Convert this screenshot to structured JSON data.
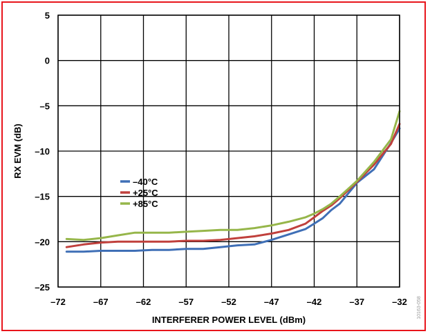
{
  "chart_data": {
    "type": "line",
    "xlabel": "INTERFERER POWER LEVEL (dBm)",
    "ylabel": "RX EVM (dB)",
    "xlim": [
      -72,
      -32
    ],
    "ylim": [
      -25,
      5
    ],
    "xticks": [
      -72,
      -67,
      -62,
      -57,
      -52,
      -47,
      -42,
      -37,
      -32
    ],
    "yticks": [
      5,
      0,
      -5,
      -10,
      -15,
      -20,
      -25
    ],
    "xtick_labels": [
      "–72",
      "–67",
      "–62",
      "–57",
      "–52",
      "–47",
      "–42",
      "–37",
      "–32"
    ],
    "ytick_labels": [
      "5",
      "0",
      "–5",
      "–10",
      "–15",
      "–20",
      "–25"
    ],
    "grid": true,
    "legend_position": "center-left",
    "series": [
      {
        "name": "–40°C",
        "color": "#3f6fb6",
        "x": [
          -71,
          -69,
          -67,
          -65,
          -63,
          -61,
          -59,
          -57,
          -55,
          -53,
          -51,
          -49,
          -47,
          -45,
          -43,
          -42,
          -41,
          -40,
          -39,
          -37,
          -35,
          -33,
          -32
        ],
        "y": [
          -21.1,
          -21.1,
          -21.0,
          -21.0,
          -21.0,
          -20.9,
          -20.9,
          -20.8,
          -20.8,
          -20.6,
          -20.4,
          -20.3,
          -19.8,
          -19.2,
          -18.6,
          -18.0,
          -17.4,
          -16.5,
          -15.8,
          -13.5,
          -12.0,
          -9.1,
          -7.5
        ]
      },
      {
        "name": "+25°C",
        "color": "#c0403c",
        "x": [
          -71,
          -69,
          -67,
          -65,
          -63,
          -61,
          -59,
          -57,
          -55,
          -53,
          -51,
          -49,
          -47,
          -45,
          -43,
          -42,
          -41,
          -40,
          -39,
          -37,
          -35,
          -33,
          -32
        ],
        "y": [
          -20.6,
          -20.3,
          -20.1,
          -20.0,
          -20.0,
          -20.0,
          -20.0,
          -19.9,
          -19.9,
          -19.8,
          -19.6,
          -19.4,
          -19.1,
          -18.7,
          -18.0,
          -17.3,
          -16.6,
          -16.0,
          -15.2,
          -13.4,
          -11.5,
          -9.2,
          -7.0
        ]
      },
      {
        "name": "+85°C",
        "color": "#96b64a",
        "x": [
          -71,
          -69,
          -67,
          -65,
          -63,
          -61,
          -59,
          -57,
          -55,
          -53,
          -51,
          -49,
          -47,
          -45,
          -43,
          -42,
          -41,
          -40,
          -39,
          -37,
          -35,
          -33,
          -32
        ],
        "y": [
          -19.7,
          -19.8,
          -19.6,
          -19.3,
          -19.0,
          -19.0,
          -19.0,
          -18.9,
          -18.8,
          -18.7,
          -18.7,
          -18.5,
          -18.2,
          -17.8,
          -17.3,
          -16.9,
          -16.4,
          -15.8,
          -15.0,
          -13.3,
          -11.2,
          -8.7,
          -5.6
        ]
      }
    ]
  },
  "figure_id": "10163-058"
}
